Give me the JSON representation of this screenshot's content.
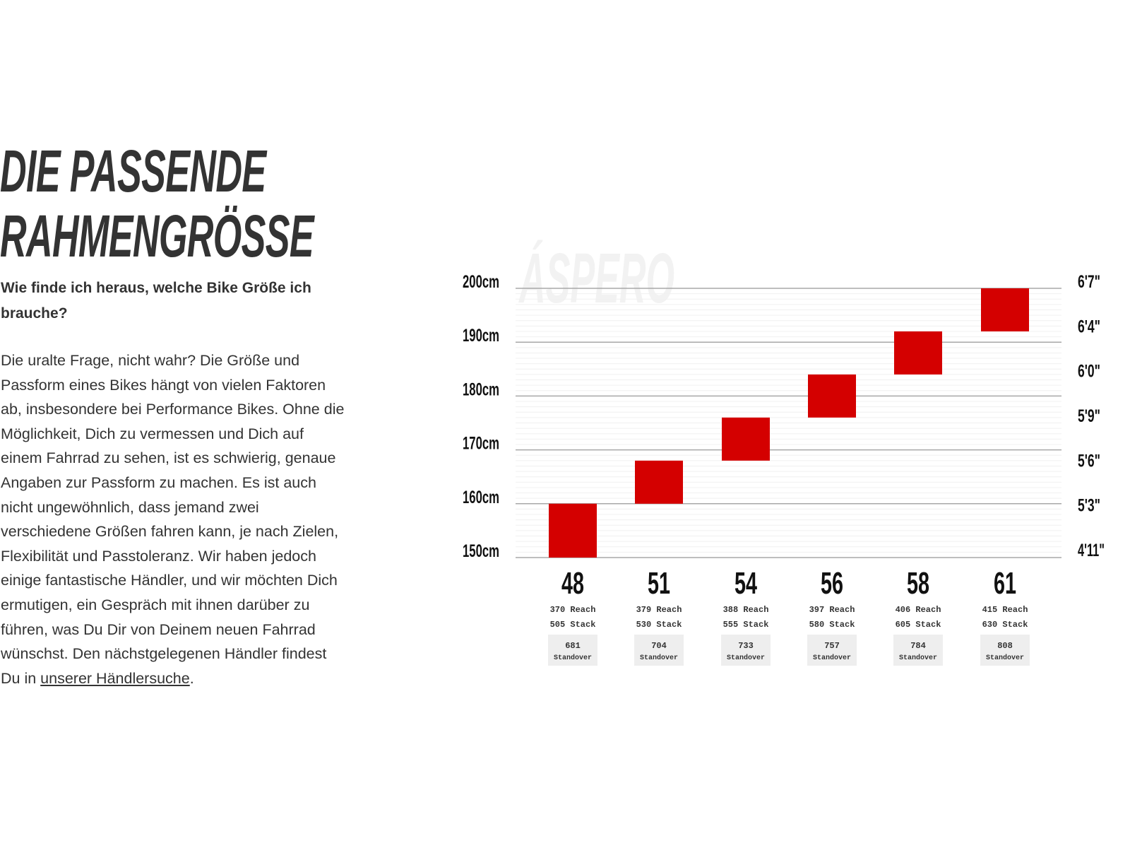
{
  "heading": {
    "line1": "DIE PASSENDE",
    "line2": "RAHMENGRÖSSE"
  },
  "subheading": "Wie finde ich heraus, welche Bike Größe ich brauche?",
  "body": {
    "lines": [
      "Die uralte Frage, nicht wahr? Die Größe und",
      "Passform eines Bikes hängt von vielen Faktoren",
      "ab, insbesondere bei Performance Bikes. Ohne die",
      "Möglichkeit, Dich zu vermessen und Dich auf",
      "einem Fahrrad zu sehen, ist es schwierig, genaue",
      "Angaben zur Passform zu machen. Es ist auch",
      "nicht ungewöhnlich, dass jemand zwei",
      "verschiedene Größen fahren kann, je nach Zielen,",
      "Flexibilität und Passtoleranz. Wir haben jedoch",
      "einige fantastische Händler, und wir möchten Dich",
      "ermutigen, ein Gespräch mit ihnen darüber zu",
      "führen, was Du Dir von Deinem neuen Fahrrad",
      "wünschst. Den nächstgelegenen Händler findest"
    ],
    "last_prefix": "Du in ",
    "link_text": "unserer Händlersuche",
    "last_suffix": "."
  },
  "chart_data": {
    "type": "bar",
    "watermark": "ÁSPERO",
    "ylim": [
      150,
      200
    ],
    "y_ticks_left": [
      "150cm",
      "160cm",
      "170cm",
      "180cm",
      "190cm",
      "200cm"
    ],
    "y_ticks_left_values": [
      150,
      160,
      170,
      180,
      190,
      200
    ],
    "y_ticks_right": [
      "4'11\"",
      "5'3\"",
      "5'6\"",
      "5'9\"",
      "6'0\"",
      "6'4\"",
      "6'7\""
    ],
    "grid": true,
    "bar_color": "#d40000",
    "categories": [
      "48",
      "51",
      "54",
      "56",
      "58",
      "61"
    ],
    "ranges": [
      [
        150,
        160
      ],
      [
        160,
        168
      ],
      [
        168,
        176
      ],
      [
        176,
        184
      ],
      [
        184,
        192
      ],
      [
        192,
        200
      ]
    ],
    "reach": [
      "370 Reach",
      "379 Reach",
      "388 Reach",
      "397 Reach",
      "406 Reach",
      "415 Reach"
    ],
    "stack": [
      "505 Stack",
      "530 Stack",
      "555 Stack",
      "580 Stack",
      "605 Stack",
      "630 Stack"
    ],
    "standover": [
      "681",
      "704",
      "733",
      "757",
      "784",
      "808"
    ],
    "standover_label": "Standover"
  }
}
